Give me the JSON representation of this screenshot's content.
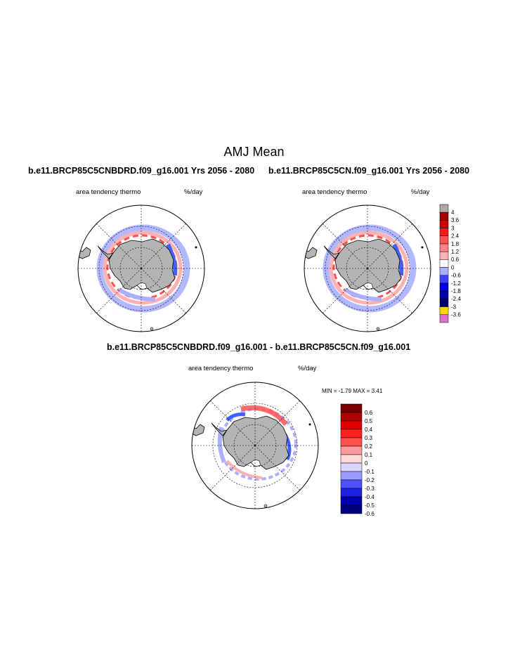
{
  "figure": {
    "title": "AMJ Mean",
    "panel_left": {
      "title": "b.e11.BRCP85C5CNBDRD.f09_g16.001  Yrs 2056 - 2080",
      "left_label": "area tendency thermo",
      "right_label": "%/day"
    },
    "panel_right": {
      "title": "b.e11.BRCP85C5CN.f09_g16.001  Yrs 2056 - 2080",
      "left_label": "area tendency thermo",
      "right_label": "%/day"
    },
    "panel_diff": {
      "title": "b.e11.BRCP85C5CNBDRD.f09_g16.001 - b.e11.BRCP85C5CN.f09_g16.001",
      "left_label": "area tendency thermo",
      "right_label": "%/day",
      "stats": "MIN =  -1.79 MAX =   3.41"
    }
  },
  "legend_top": {
    "labels": [
      "4",
      "3.6",
      "3",
      "2.4",
      "1.8",
      "1.2",
      "0.6",
      "0",
      "-0.6",
      "-1.2",
      "-1.8",
      "-2.4",
      "-3",
      "-3.6"
    ],
    "colors": [
      "#a9a9a9",
      "#a80000",
      "#d00000",
      "#ff1a1a",
      "#ff5050",
      "#ff8080",
      "#ffb0b0",
      "#ffffff",
      "#aab0ff",
      "#4040ff",
      "#0000e0",
      "#0000a8",
      "#000070",
      "#ffd700",
      "#e070d0"
    ]
  },
  "legend_diff": {
    "labels": [
      "0.6",
      "0.5",
      "0.4",
      "0.3",
      "0.2",
      "0.1",
      "0",
      "-0.1",
      "-0.2",
      "-0.3",
      "-0.4",
      "-0.5",
      "-0.6"
    ],
    "colors": [
      "#7a0000",
      "#b00000",
      "#e00000",
      "#ff2020",
      "#ff5050",
      "#ff9a9a",
      "#ffd8d8",
      "#d8d8ff",
      "#9a9aff",
      "#5050ff",
      "#2020e0",
      "#0000b0",
      "#00007a"
    ]
  },
  "map_colors": {
    "land": "#b4b4b4",
    "ocean": "#ffffff",
    "red": "#ff5050",
    "light_red": "#ffb0b0",
    "blue": "#4060ff",
    "light_blue": "#aab0ff"
  }
}
